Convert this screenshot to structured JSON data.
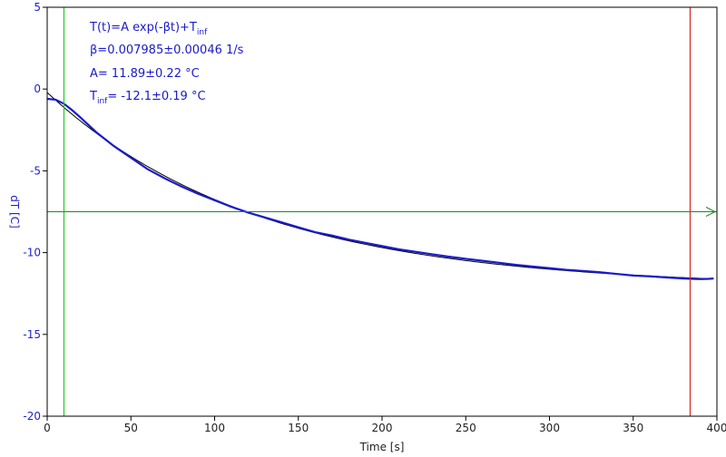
{
  "chart_data": {
    "type": "line",
    "xlabel": "Time [s]",
    "ylabel": "dT [C]",
    "xlim": [
      0,
      400
    ],
    "ylim": [
      -20,
      5
    ],
    "x_ticks": [
      0,
      50,
      100,
      150,
      200,
      250,
      300,
      350,
      400
    ],
    "y_ticks": [
      5,
      0,
      -5,
      -10,
      -15,
      -20
    ],
    "grid": false,
    "colors": {
      "data": "#1a1acc",
      "fit": "#000000",
      "start_cursor": "#22cc22",
      "end_cursor": "#dd2222",
      "level_line": "#228822",
      "axis_labels": "#2222cc"
    },
    "series": [
      {
        "x": [
          0,
          5,
          10,
          15,
          20,
          30,
          40,
          50,
          60,
          70,
          80,
          90,
          100,
          110,
          120,
          130,
          140,
          150,
          160,
          170,
          180,
          190,
          200,
          210,
          220,
          230,
          240,
          250,
          260,
          270,
          280,
          290,
          300,
          310,
          320,
          330,
          340,
          350,
          360,
          370,
          380,
          385,
          390,
          395,
          398
        ],
        "y": [
          -0.6,
          -0.65,
          -0.9,
          -1.3,
          -1.75,
          -2.7,
          -3.5,
          -4.2,
          -4.9,
          -5.45,
          -5.95,
          -6.4,
          -6.8,
          -7.2,
          -7.55,
          -7.85,
          -8.15,
          -8.45,
          -8.75,
          -8.95,
          -9.2,
          -9.4,
          -9.6,
          -9.8,
          -9.95,
          -10.1,
          -10.25,
          -10.38,
          -10.5,
          -10.62,
          -10.75,
          -10.85,
          -10.95,
          -11.05,
          -11.12,
          -11.2,
          -11.3,
          -11.4,
          -11.45,
          -11.52,
          -11.58,
          -11.6,
          -11.62,
          -11.6,
          -11.58
        ]
      }
    ],
    "fit": {
      "formula": "T(t)=A exp(-βt)+T_inf",
      "beta": 0.007985,
      "beta_err": 0.00046,
      "A": 11.89,
      "A_err": 0.22,
      "T_inf": -12.1,
      "T_inf_err": 0.19,
      "x_range": [
        0,
        398
      ]
    },
    "cursors": {
      "start_x": 10,
      "end_x": 384,
      "level_y": -7.5
    },
    "annotations": {
      "formula_prefix": "T(t)=A exp(-βt)+T",
      "inf_sub": "inf",
      "beta_line": "β=0.007985±0.00046 1/s",
      "a_line": "A= 11.89±0.22 °C",
      "tinf_prefix": "T",
      "tinf_sub": "inf",
      "tinf_value": "= -12.1±0.19 °C"
    }
  }
}
